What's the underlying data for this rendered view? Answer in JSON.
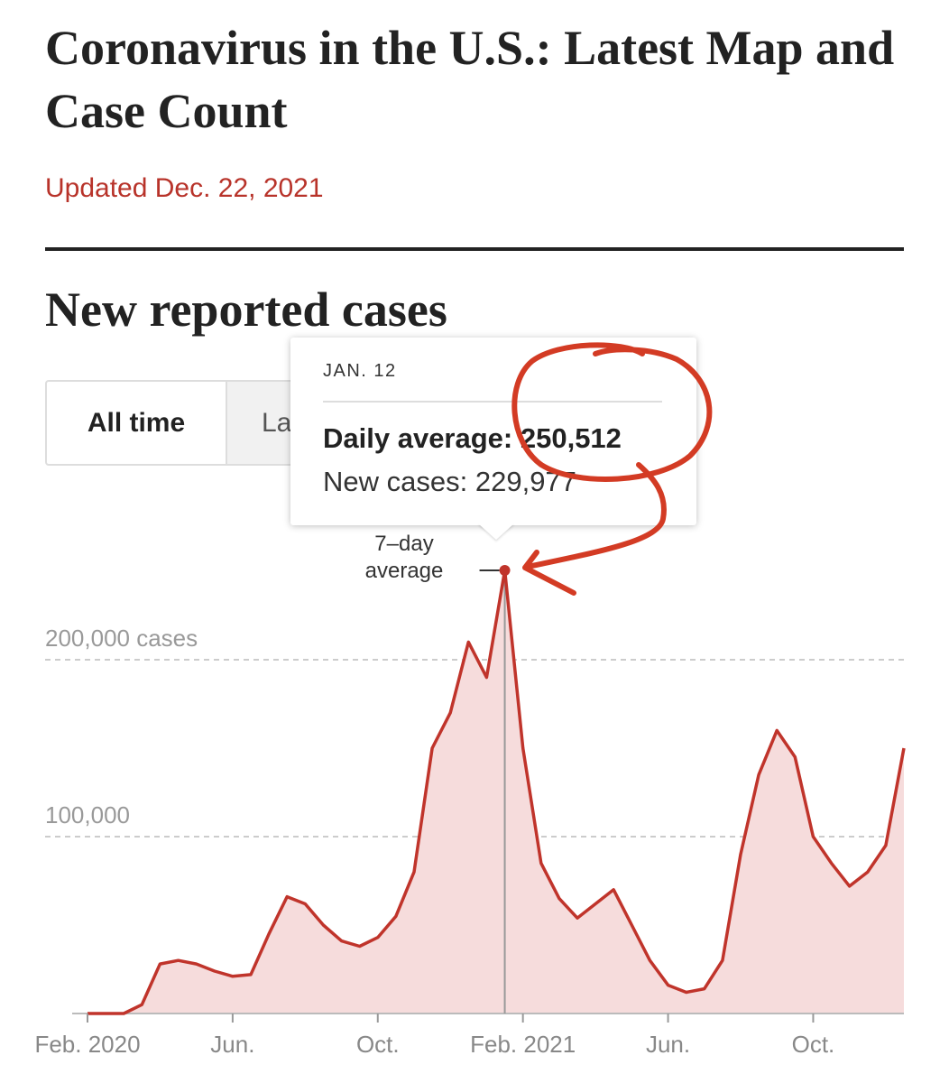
{
  "header": {
    "title": "Coronavirus in the U.S.: Latest Map and Case Count",
    "updated": "Updated Dec. 22, 2021"
  },
  "section_title": "New reported cases",
  "buttons": [
    "All time",
    "La"
  ],
  "chart_data": {
    "type": "line",
    "color": "#c0342b",
    "fill": "#f6dcdc",
    "categories": [
      "Feb. 2020",
      null,
      null,
      null,
      null,
      null,
      null,
      null,
      "Jun.",
      null,
      null,
      null,
      null,
      null,
      null,
      null,
      "Oct.",
      null,
      null,
      null,
      null,
      null,
      null,
      null,
      "Feb. 2021",
      null,
      null,
      null,
      null,
      null,
      null,
      null,
      "Jun.",
      null,
      null,
      null,
      null,
      null,
      null,
      null,
      "Oct.",
      null,
      null,
      null,
      null,
      null
    ],
    "values": [
      0,
      0,
      0,
      5000,
      28000,
      30000,
      28000,
      24000,
      21000,
      22000,
      45000,
      66000,
      62000,
      50000,
      41000,
      38000,
      43000,
      55000,
      80000,
      150000,
      170000,
      210000,
      190000,
      250512,
      150000,
      85000,
      65000,
      54000,
      62000,
      70000,
      50000,
      30000,
      16000,
      12000,
      14000,
      30000,
      90000,
      135000,
      160000,
      145000,
      100000,
      85000,
      72000,
      80000,
      95000,
      150000
    ],
    "ylim": [
      0,
      250000
    ],
    "yticks": [
      {
        "value": 100000,
        "label": "100,000"
      },
      {
        "value": 200000,
        "label": "200,000 cases"
      }
    ],
    "grid": true,
    "annotation": "7–day average",
    "tooltip": {
      "date": "JAN. 12",
      "rows": [
        {
          "label": "Daily average:",
          "value": "250,512"
        },
        {
          "label": "New cases:",
          "value": "229,977"
        }
      ]
    }
  }
}
